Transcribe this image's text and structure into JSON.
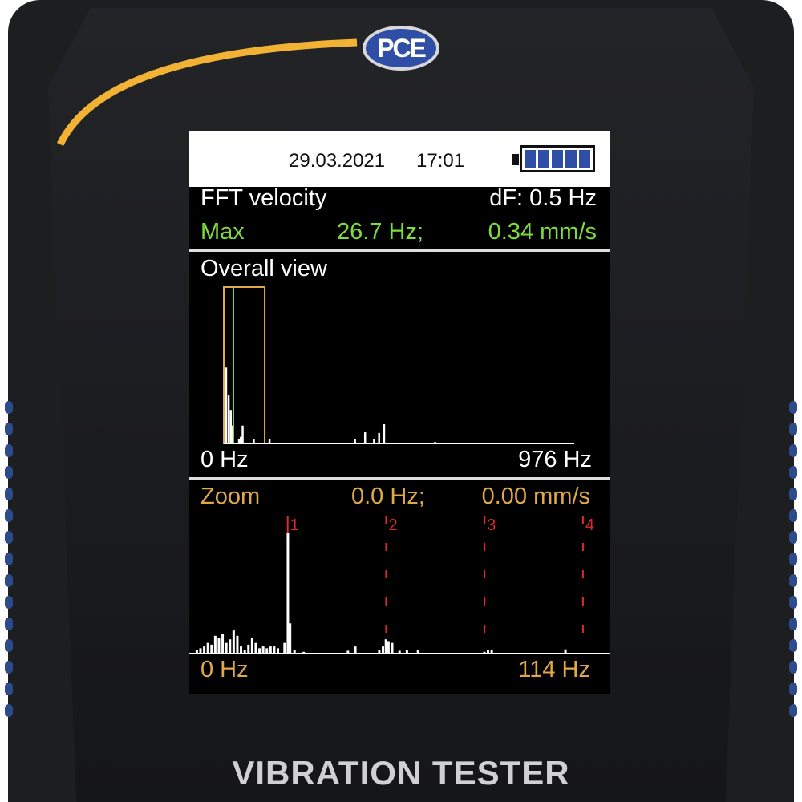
{
  "device": {
    "brand_logo": "PCE Inst.",
    "label": "VIBRATION TESTER",
    "accent_color": "#f2b233"
  },
  "status_bar": {
    "date": "29.03.2021",
    "time": "17:01",
    "battery_level_percent": 100,
    "battery_icon": "battery-full-icon"
  },
  "measurement": {
    "mode": "FFT velocity",
    "resolution": "dF: 0.5 Hz",
    "max_label": "Max",
    "max_freq": "26.7 Hz;",
    "max_value": "0.34 mm/s"
  },
  "overall": {
    "title": "Overall view",
    "x_min_label": "0 Hz",
    "x_max_label": "976 Hz"
  },
  "zoom": {
    "title": "Zoom",
    "cursor_freq": "0.0 Hz;",
    "cursor_value": "0.00 mm/s",
    "x_min_label": "0 Hz",
    "x_max_label": "114 Hz"
  },
  "colors": {
    "green": "#7ddc3c",
    "orange": "#e0a84a",
    "red": "#e02a2a",
    "bars": "#ffffff"
  },
  "chart_data": [
    {
      "type": "bar",
      "name": "overall-spectrum",
      "x_unit": "Hz",
      "y_unit": "mm/s",
      "xlim": [
        0,
        976
      ],
      "ylim": [
        0,
        0.7
      ],
      "max_marker_hz": 26.7,
      "zoom_window_hz": [
        0,
        114
      ],
      "x": [
        6,
        13,
        19,
        24,
        42,
        47,
        52,
        83,
        127,
        365,
        393,
        418,
        432,
        446,
        588
      ],
      "values": [
        0.34,
        0.215,
        0.15,
        0.08,
        0.02,
        0.03,
        0.08,
        0.018,
        0.018,
        0.02,
        0.05,
        0.02,
        0.047,
        0.086,
        0.007
      ]
    },
    {
      "type": "bar",
      "name": "zoom-spectrum",
      "x_unit": "Hz",
      "y_unit": "mm/s",
      "xlim": [
        0,
        114
      ],
      "ylim": [
        0,
        0.38
      ],
      "harmonic_markers": [
        {
          "label": "1",
          "hz": 26.7
        },
        {
          "label": "2",
          "hz": 53.4
        },
        {
          "label": "3",
          "hz": 80.1
        },
        {
          "label": "4",
          "hz": 106.8
        }
      ],
      "x": [
        2,
        3,
        4,
        5,
        6,
        7,
        8,
        9,
        10,
        11,
        12,
        13,
        14,
        15,
        16,
        17,
        18,
        19,
        20,
        21,
        22,
        23,
        24,
        25.8,
        26.7,
        27.3,
        28.5,
        31,
        43,
        45,
        51.5,
        52.5,
        53.3,
        54,
        55,
        57,
        59,
        62,
        80,
        81,
        82,
        102
      ],
      "values": [
        0.01,
        0.015,
        0.02,
        0.03,
        0.025,
        0.05,
        0.045,
        0.055,
        0.03,
        0.04,
        0.065,
        0.05,
        0.02,
        0.01,
        0.025,
        0.045,
        0.03,
        0.015,
        0.02,
        0.015,
        0.02,
        0.02,
        0.015,
        0.03,
        0.34,
        0.085,
        0.01,
        0.005,
        0.008,
        0.02,
        0.01,
        0.02,
        0.04,
        0.035,
        0.03,
        0.008,
        0.01,
        0.01,
        0.005,
        0.01,
        0.01,
        0.012
      ]
    }
  ]
}
